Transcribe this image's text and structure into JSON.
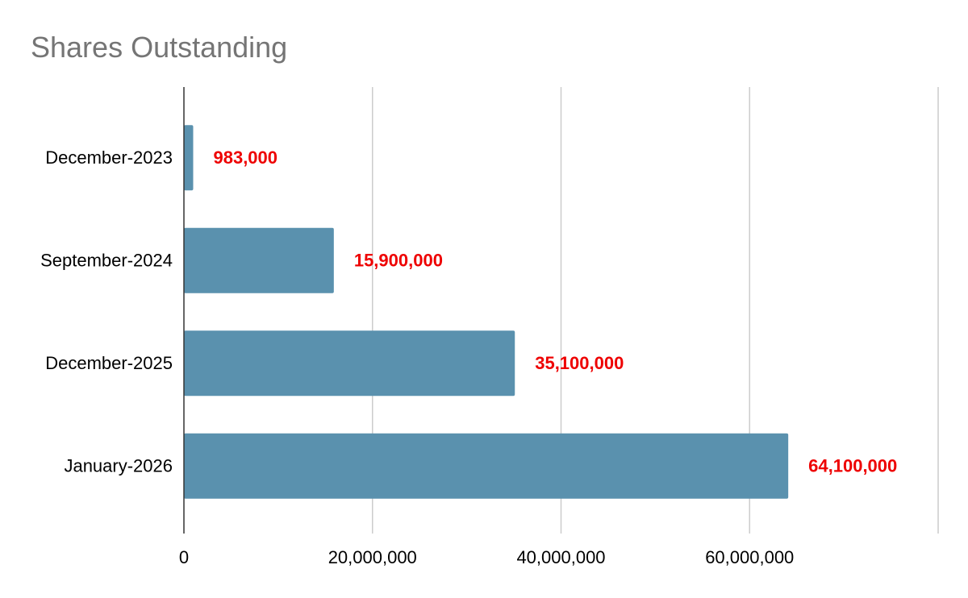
{
  "chart_data": {
    "type": "bar",
    "orientation": "horizontal",
    "title": "Shares Outstanding",
    "xlabel": "",
    "ylabel": "",
    "categories": [
      "December-2023",
      "September-2024",
      "December-2025",
      "January-2026"
    ],
    "values": [
      983000,
      15900000,
      35100000,
      64100000
    ],
    "data_labels": [
      "983,000",
      "15,900,000",
      "35,100,000",
      "64,100,000"
    ],
    "xlim": [
      0,
      80000000
    ],
    "xticks": [
      0,
      20000000,
      40000000,
      60000000,
      80000000
    ],
    "xtick_labels": [
      "0",
      "20,000,000",
      "40,000,000",
      "60,000,000",
      ""
    ],
    "grid": "vertical",
    "legend": "none",
    "colors": {
      "bar": "#5a91ae",
      "data_label": "#ee0000",
      "title": "#757575",
      "gridline": "#cccccc",
      "axis": "#333333",
      "tick_label": "#000000"
    }
  }
}
